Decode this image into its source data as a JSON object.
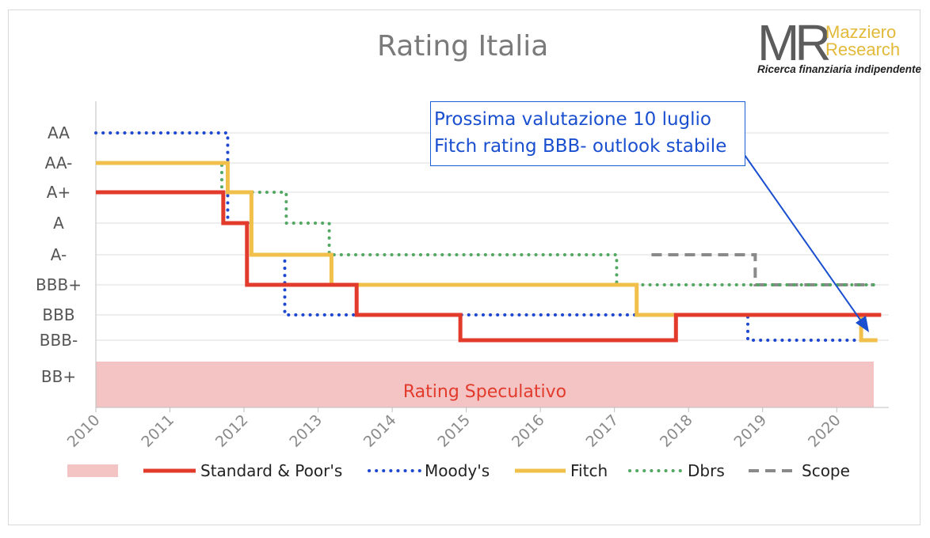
{
  "chart_data": {
    "type": "line",
    "title": "Rating Italia",
    "y_categories": [
      "BB+",
      "BBB-",
      "BBB",
      "BBB+",
      "A-",
      "A",
      "A+",
      "AA-",
      "AA"
    ],
    "x_ticks": [
      "2010",
      "2011",
      "2012",
      "2013",
      "2014",
      "2015",
      "2016",
      "2017",
      "2018",
      "2019",
      "2020"
    ],
    "xlim": [
      2010,
      2020.75
    ],
    "grid": "horizontal",
    "legend_position": "bottom",
    "shaded_zone": {
      "label": "Rating Speculativo",
      "from_level": "BB+",
      "color": "#f4c4c4"
    },
    "annotation": {
      "lines": [
        "Prossima valutazione 10 luglio",
        "Fitch rating BBB- outlook stabile"
      ],
      "points_to": {
        "x": 2020.45,
        "y": "BBB-"
      }
    },
    "series": [
      {
        "name": "Standard & Poor's",
        "style": "solid",
        "color": "#e23b2c",
        "steps": [
          [
            2010,
            "A+"
          ],
          [
            2011.72,
            "A"
          ],
          [
            2012.04,
            "BBB+"
          ],
          [
            2013.52,
            "BBB"
          ],
          [
            2014.92,
            "BBB-"
          ],
          [
            2017.83,
            "BBB"
          ],
          [
            2020.6,
            "BBB"
          ]
        ]
      },
      {
        "name": "Moody's",
        "style": "dotted",
        "color": "#1f48d0",
        "steps": [
          [
            2010,
            "AA"
          ],
          [
            2011.78,
            "A"
          ],
          [
            2012.1,
            "A-"
          ],
          [
            2012.55,
            "BBB"
          ],
          [
            2018.8,
            "BBB-"
          ],
          [
            2020.5,
            "BBB-"
          ]
        ]
      },
      {
        "name": "Fitch",
        "style": "solid",
        "color": "#f1c04a",
        "steps": [
          [
            2010,
            "AA-"
          ],
          [
            2011.78,
            "A+"
          ],
          [
            2012.1,
            "A-"
          ],
          [
            2013.18,
            "BBB+"
          ],
          [
            2017.3,
            "BBB"
          ],
          [
            2020.33,
            "BBB-"
          ],
          [
            2020.55,
            "BBB-"
          ]
        ]
      },
      {
        "name": "Dbrs",
        "style": "dotted",
        "color": "#52a862",
        "steps": [
          [
            2011.05,
            "AA-"
          ],
          [
            2011.7,
            "A+"
          ],
          [
            2012.57,
            "A"
          ],
          [
            2013.15,
            "A-"
          ],
          [
            2017.03,
            "BBB+"
          ],
          [
            2020.5,
            "BBB+"
          ]
        ]
      },
      {
        "name": "Scope",
        "style": "dashed",
        "color": "#8a8a8a",
        "steps": [
          [
            2017.5,
            "A-"
          ],
          [
            2018.9,
            "BBB+"
          ],
          [
            2020.5,
            "BBB+"
          ]
        ]
      }
    ]
  },
  "logo": {
    "mark": "MR",
    "name_line1": "Mazziero",
    "name_line2": "Research",
    "tagline": "Ricerca finanziaria indipendente"
  }
}
